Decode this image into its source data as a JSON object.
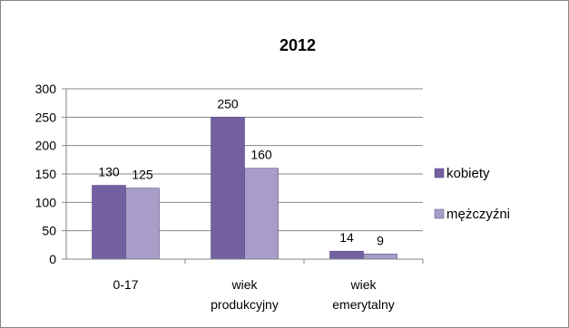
{
  "chart_data": {
    "type": "bar",
    "title": "2012",
    "categories": [
      [
        "0-17"
      ],
      [
        "wiek",
        "produkcyjny"
      ],
      [
        "wiek",
        "emerytalny"
      ]
    ],
    "series": [
      {
        "name": "kobiety",
        "values": [
          130,
          250,
          14
        ],
        "color": "#7260A0"
      },
      {
        "name": "mężczyźni",
        "values": [
          125,
          160,
          9
        ],
        "color": "#A89CC8"
      }
    ],
    "ylim": [
      0,
      300
    ],
    "yticks": [
      0,
      50,
      100,
      150,
      200,
      250,
      300
    ],
    "grid": true,
    "legend": "right",
    "data_labels": [
      [
        "130",
        "250",
        "14"
      ],
      [
        "125",
        "160",
        "9"
      ]
    ]
  }
}
